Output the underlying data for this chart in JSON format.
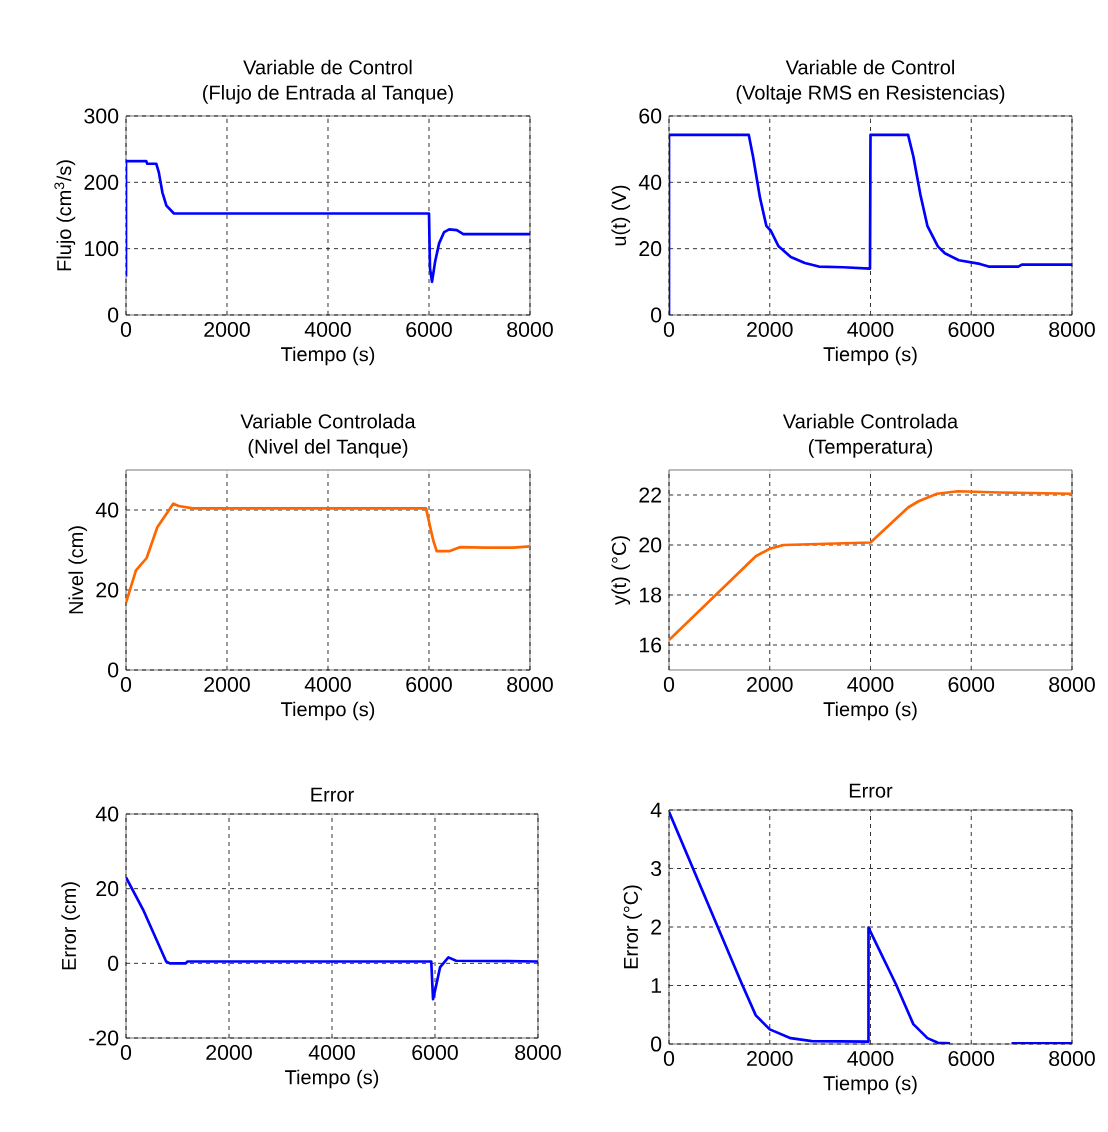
{
  "chart_data": [
    {
      "type": "line",
      "title": "Variable de Control",
      "subtitle": "(Flujo de Entrada al Tanque)",
      "xlabel": "Tiempo (s)",
      "ylabel": "Flujo (cm$^{3}$/s)",
      "xlim": [
        0,
        8000
      ],
      "xticks": [
        0,
        2000,
        4000,
        6000,
        8000
      ],
      "ylim": [
        0,
        300
      ],
      "yticks": [
        0,
        100,
        200,
        300
      ],
      "grid": true,
      "line_style": "solid",
      "series": [
        {
          "color": "#0000ff",
          "x": [
            0,
            0,
            400,
            420,
            600,
            650,
            720,
            800,
            950,
            6000,
            6020,
            6060,
            6120,
            6200,
            6300,
            6400,
            6550,
            6680,
            8000
          ],
          "values": [
            58,
            232,
            232,
            228,
            228,
            215,
            185,
            165,
            153,
            153,
            70,
            50,
            80,
            108,
            125,
            129,
            128,
            122,
            122
          ]
        }
      ]
    },
    {
      "type": "line",
      "title": "Variable de Control",
      "subtitle": "(Voltaje RMS en Resistencias)",
      "xlabel": "Tiempo (s)",
      "ylabel": "u(t) (V)",
      "xlim": [
        0,
        8000
      ],
      "xticks": [
        0,
        2000,
        4000,
        6000,
        8000
      ],
      "ylim": [
        0,
        60
      ],
      "yticks": [
        0,
        20,
        40,
        60
      ],
      "grid": true,
      "line_style": "solid",
      "series": [
        {
          "color": "#0000ff",
          "x": [
            0,
            0,
            1584,
            1668,
            1807,
            1932,
            2022,
            2175,
            2418,
            2696,
            2974,
            3461,
            3990,
            4000,
            4746,
            4851,
            4990,
            5129,
            5337,
            5476,
            5754,
            6171,
            6345,
            6935,
            7005,
            8000
          ],
          "values": [
            0,
            54.3,
            54.3,
            47.8,
            35.3,
            26.9,
            25.4,
            20.7,
            17.5,
            15.7,
            14.6,
            14.4,
            14.0,
            54.3,
            54.3,
            47.8,
            36.3,
            26.9,
            20.7,
            18.6,
            16.5,
            15.4,
            14.6,
            14.6,
            15.2,
            15.2
          ]
        }
      ]
    },
    {
      "type": "line",
      "title": "Variable Controlada",
      "subtitle": "(Nivel del Tanque)",
      "xlabel": "Tiempo (s)",
      "ylabel": "Nivel (cm)",
      "xlim": [
        0,
        8000
      ],
      "xticks": [
        0,
        2000,
        4000,
        6000,
        8000
      ],
      "ylim": [
        0,
        50
      ],
      "yticks": [
        0,
        20,
        40
      ],
      "grid": true,
      "line_style": "solid",
      "series": [
        {
          "color": "#ff6600",
          "x": [
            0,
            197,
            409,
            620,
            832,
            937,
            1043,
            1325,
            5941,
            6082,
            6152,
            6399,
            6610,
            7104,
            7667,
            8000
          ],
          "values": [
            16.8,
            24.9,
            28.0,
            35.7,
            39.6,
            41.6,
            41.0,
            40.4,
            40.4,
            32.5,
            29.7,
            29.7,
            30.7,
            30.6,
            30.6,
            30.9
          ]
        }
      ]
    },
    {
      "type": "line",
      "title": "Variable Controlada",
      "subtitle": "(Temperatura)",
      "xlabel": "Tiempo (s)",
      "ylabel": "y(t) (°C)",
      "xlim": [
        0,
        8000
      ],
      "xticks": [
        0,
        2000,
        4000,
        6000,
        8000
      ],
      "ylim": [
        15,
        23
      ],
      "yticks": [
        16,
        18,
        20,
        22
      ],
      "grid": true,
      "line_style": "solid",
      "series": [
        {
          "color": "#ff6600",
          "x": [
            0,
            1723,
            2000,
            2276,
            4000,
            4746,
            4955,
            5320,
            5735,
            6568,
            8000
          ],
          "values": [
            16.2,
            19.55,
            19.85,
            20.0,
            20.1,
            21.5,
            21.75,
            22.05,
            22.15,
            22.1,
            22.05
          ]
        }
      ]
    },
    {
      "type": "line",
      "title": "Error",
      "xlabel": "Tiempo (s)",
      "ylabel": "Error (cm)",
      "xlim": [
        0,
        8000
      ],
      "xticks": [
        0,
        2000,
        4000,
        6000,
        8000
      ],
      "ylim": [
        -20,
        40
      ],
      "yticks": [
        -20,
        0,
        20,
        40
      ],
      "grid": true,
      "line_style": "solid",
      "series": [
        {
          "color": "#0000ff",
          "x": [
            0,
            331,
            780,
            850,
            1160,
            1195,
            5927,
            5962,
            6010,
            6100,
            6260,
            6410,
            8000
          ],
          "values": [
            23.0,
            14.4,
            0.5,
            0,
            0,
            0.5,
            0.5,
            -9.6,
            -6.7,
            -1,
            1.6,
            0.7,
            0.5
          ]
        }
      ]
    },
    {
      "type": "line",
      "title": "Error",
      "xlabel": "Tiempo (s)",
      "ylabel": "Error (°C)",
      "xlim": [
        0,
        8000
      ],
      "xticks": [
        0,
        2000,
        4000,
        6000,
        8000
      ],
      "ylim": [
        0,
        4
      ],
      "yticks": [
        0,
        1,
        2,
        3,
        4
      ],
      "grid": true,
      "line_style": "solid",
      "series": [
        {
          "color": "#0000ff",
          "x": [
            0,
            1445,
            1723,
            2000,
            2415,
            2835,
            3960,
            3960,
            4500,
            4850,
            5130,
            5337,
            5580,
            6200,
            6800,
            8000
          ],
          "values": [
            3.97,
            1.03,
            0.49,
            0.25,
            0.1,
            0.05,
            0.04,
            1.99,
            1.03,
            0.34,
            0.1,
            0.02,
            0.01,
            null,
            0.01,
            0.01
          ]
        }
      ]
    }
  ]
}
